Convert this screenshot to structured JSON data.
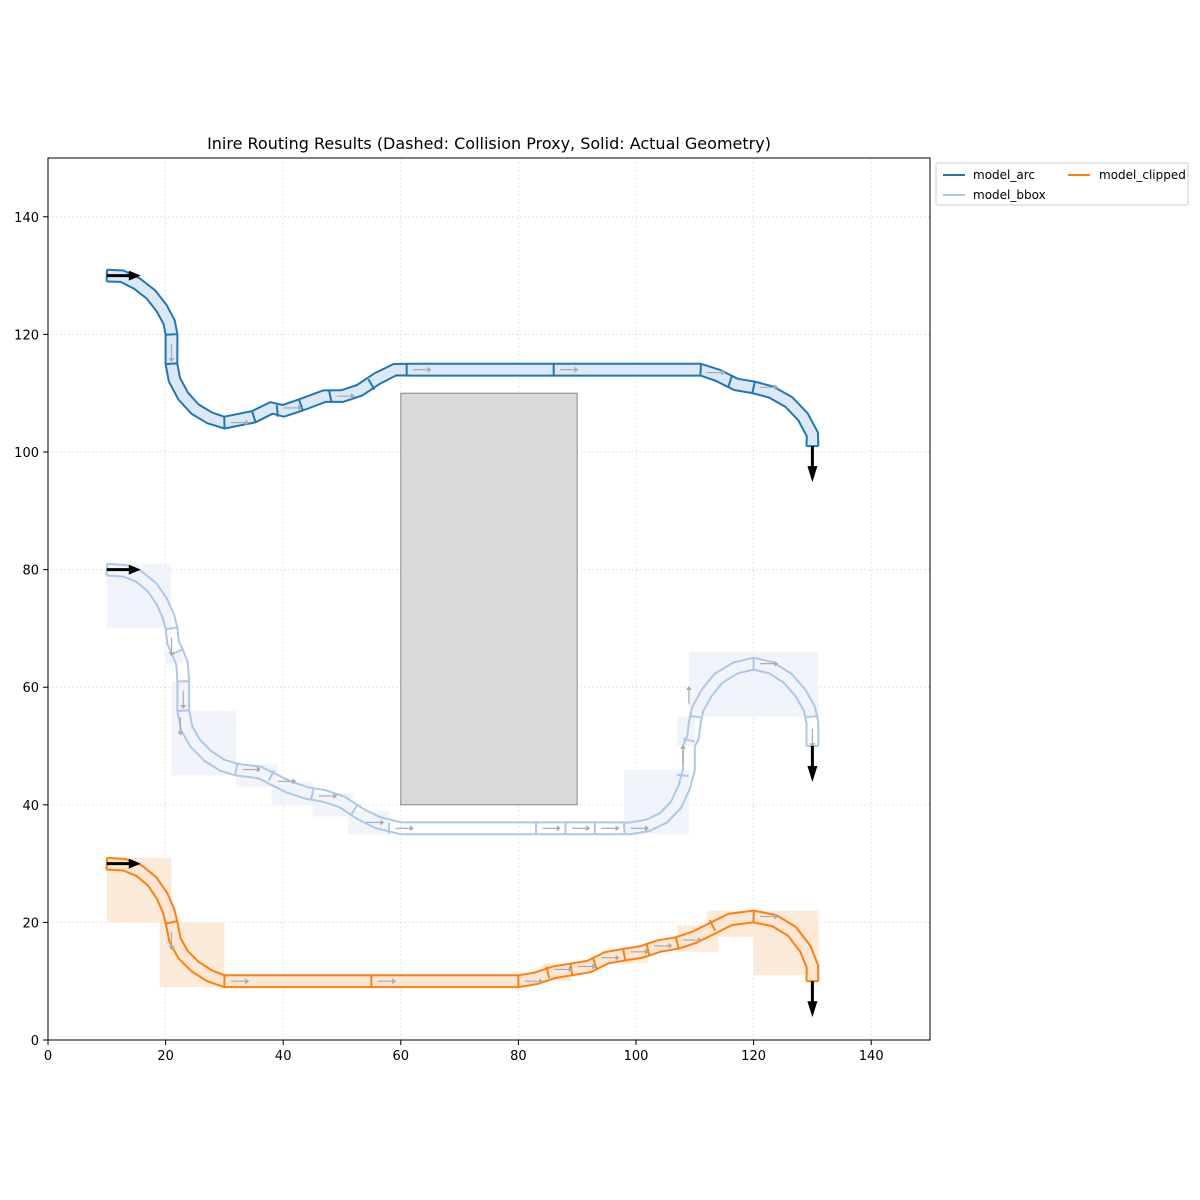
{
  "chart_data": {
    "type": "line",
    "title": "Inire Routing Results (Dashed: Collision Proxy, Solid: Actual Geometry)",
    "xlabel": "",
    "ylabel": "",
    "xlim": [
      0,
      150
    ],
    "ylim": [
      0,
      150
    ],
    "xticks": [
      0,
      20,
      40,
      60,
      80,
      100,
      120,
      140
    ],
    "yticks": [
      0,
      20,
      40,
      60,
      80,
      100,
      120,
      140
    ],
    "grid": true,
    "legend_placement": "outside top-right",
    "obstacle": {
      "x0": 60,
      "y0": 40,
      "x1": 90,
      "y1": 110,
      "color": "#d9d9d9"
    },
    "series": [
      {
        "name": "model_arc",
        "color": "#1f77b4",
        "fill": "#dce9f5",
        "proxy_fill": "",
        "start": {
          "x": 10,
          "y": 130,
          "dir": "east"
        },
        "end": {
          "x": 130,
          "y": 101,
          "dir": "south"
        },
        "path": [
          [
            10,
            130
          ],
          [
            12.6,
            129.9
          ],
          [
            15.2,
            128.6
          ],
          [
            17.5,
            126.8
          ],
          [
            19.3,
            124.5
          ],
          [
            20.6,
            122.1
          ],
          [
            21,
            120
          ],
          [
            21,
            115
          ],
          [
            21.5,
            112.3
          ],
          [
            23,
            109.5
          ],
          [
            25,
            107.3
          ],
          [
            27.5,
            105.8
          ],
          [
            30,
            105
          ],
          [
            35,
            106
          ],
          [
            38,
            107.5
          ],
          [
            40,
            107
          ],
          [
            43,
            108
          ],
          [
            47,
            109.5
          ],
          [
            50,
            109.5
          ],
          [
            53,
            110.5
          ],
          [
            56,
            112.5
          ],
          [
            59,
            114
          ],
          [
            62,
            114
          ],
          [
            86,
            114
          ],
          [
            111,
            114
          ],
          [
            114,
            113
          ],
          [
            117,
            111.5
          ],
          [
            120,
            111
          ],
          [
            123,
            110.2
          ],
          [
            126,
            108.5
          ],
          [
            128.4,
            106
          ],
          [
            130,
            103
          ],
          [
            130,
            101
          ]
        ],
        "ticks": [
          [
            10,
            130
          ],
          [
            21,
            120
          ],
          [
            21,
            115
          ],
          [
            30,
            105
          ],
          [
            35,
            106
          ],
          [
            39,
            107
          ],
          [
            43,
            108
          ],
          [
            48,
            109.5
          ],
          [
            55,
            111.5
          ],
          [
            61,
            114
          ],
          [
            86,
            114
          ],
          [
            111,
            114
          ],
          [
            116,
            112
          ],
          [
            120,
            111
          ],
          [
            130,
            101
          ]
        ],
        "arrows": [
          [
            21,
            117.5,
            "s"
          ],
          [
            32,
            105,
            "e"
          ],
          [
            41,
            107.5,
            "e"
          ],
          [
            50,
            109.5,
            "e"
          ],
          [
            63,
            114,
            "e"
          ],
          [
            88,
            114,
            "e"
          ],
          [
            113,
            113.5,
            "e"
          ],
          [
            122,
            111,
            "e"
          ]
        ]
      },
      {
        "name": "model_bbox",
        "color": "#aec7e8",
        "fill": "none",
        "proxy_fill": "#eef3fa",
        "start": {
          "x": 10,
          "y": 80,
          "dir": "east"
        },
        "end": {
          "x": 130,
          "y": 50,
          "dir": "south"
        },
        "path": [
          [
            10,
            80
          ],
          [
            13,
            79.8
          ],
          [
            15.5,
            78.8
          ],
          [
            17.7,
            77
          ],
          [
            19.4,
            74.5
          ],
          [
            20.5,
            72
          ],
          [
            21,
            70
          ],
          [
            21.3,
            67.5
          ],
          [
            22,
            66
          ],
          [
            22.8,
            64
          ],
          [
            23,
            61
          ],
          [
            23,
            56
          ],
          [
            23.6,
            53
          ],
          [
            25,
            50.5
          ],
          [
            27.2,
            48.3
          ],
          [
            29.7,
            46.7
          ],
          [
            32,
            46
          ],
          [
            36,
            45.5
          ],
          [
            38,
            44.5
          ],
          [
            41,
            43
          ],
          [
            44,
            42
          ],
          [
            47,
            41.5
          ],
          [
            50,
            40.5
          ],
          [
            53,
            38.5
          ],
          [
            56,
            37
          ],
          [
            60,
            36
          ],
          [
            85,
            36
          ],
          [
            90,
            36
          ],
          [
            95,
            36
          ],
          [
            99,
            36
          ],
          [
            102,
            36.5
          ],
          [
            104.7,
            37.8
          ],
          [
            106.8,
            40
          ],
          [
            108.2,
            43
          ],
          [
            109,
            46
          ],
          [
            109,
            50
          ],
          [
            109.7,
            51.5
          ],
          [
            110,
            54
          ],
          [
            110.5,
            56.3
          ],
          [
            112,
            59
          ],
          [
            114,
            61.5
          ],
          [
            117,
            63.3
          ],
          [
            120,
            64
          ],
          [
            123,
            63.3
          ],
          [
            125.8,
            61.5
          ],
          [
            128,
            59
          ],
          [
            129.5,
            56.3
          ],
          [
            130,
            54
          ],
          [
            130,
            50
          ]
        ],
        "ticks": [
          [
            10,
            80
          ],
          [
            21,
            70
          ],
          [
            22,
            66
          ],
          [
            23,
            61
          ],
          [
            23,
            56
          ],
          [
            32,
            46
          ],
          [
            38,
            45
          ],
          [
            45,
            42
          ],
          [
            52,
            39
          ],
          [
            58,
            36
          ],
          [
            83,
            36
          ],
          [
            88,
            36
          ],
          [
            93,
            36
          ],
          [
            98,
            36
          ],
          [
            108,
            45
          ],
          [
            109,
            51
          ],
          [
            110,
            55
          ],
          [
            120,
            64
          ],
          [
            130,
            55
          ],
          [
            130,
            50
          ]
        ],
        "arrows": [
          [
            21,
            67.5,
            "s"
          ],
          [
            23,
            58.5,
            "s"
          ],
          [
            22.5,
            54,
            "s"
          ],
          [
            34,
            46,
            "e"
          ],
          [
            40,
            44,
            "e"
          ],
          [
            47,
            41.5,
            "e"
          ],
          [
            55,
            37,
            "e"
          ],
          [
            60,
            36,
            "e"
          ],
          [
            85,
            36,
            "e"
          ],
          [
            90,
            36,
            "e"
          ],
          [
            95,
            36,
            "e"
          ],
          [
            100,
            36,
            "e"
          ],
          [
            108,
            48,
            "n"
          ],
          [
            109,
            58,
            "n"
          ],
          [
            122,
            64,
            "e"
          ],
          [
            130,
            52,
            "s"
          ]
        ],
        "proxies": [
          [
            10,
            70,
            21,
            81
          ],
          [
            20,
            64,
            23,
            66
          ],
          [
            21,
            56,
            24,
            61
          ],
          [
            21,
            45,
            32,
            56
          ],
          [
            32,
            43,
            39,
            47
          ],
          [
            38,
            40,
            45,
            44
          ],
          [
            45,
            38,
            52,
            42
          ],
          [
            51,
            35,
            58,
            39
          ],
          [
            98,
            35,
            109,
            46
          ],
          [
            107,
            50,
            110,
            55
          ],
          [
            109,
            55,
            131,
            66
          ]
        ]
      },
      {
        "name": "model_clipped",
        "color": "#ff7f0e",
        "fill": "#fde7d4",
        "proxy_fill": "#fde7d4",
        "start": {
          "x": 10,
          "y": 30,
          "dir": "east"
        },
        "end": {
          "x": 130,
          "y": 10,
          "dir": "south"
        },
        "path": [
          [
            10,
            30
          ],
          [
            13,
            29.8
          ],
          [
            15.5,
            28.8
          ],
          [
            17.7,
            27
          ],
          [
            19.4,
            24.5
          ],
          [
            20.5,
            22
          ],
          [
            21,
            20
          ],
          [
            21.6,
            17
          ],
          [
            23,
            14.5
          ],
          [
            25,
            12.5
          ],
          [
            27.5,
            10.9
          ],
          [
            30,
            10
          ],
          [
            55,
            10
          ],
          [
            80,
            10
          ],
          [
            83,
            10.5
          ],
          [
            86,
            11.5
          ],
          [
            89,
            12
          ],
          [
            92,
            12.5
          ],
          [
            95,
            14
          ],
          [
            98,
            14.5
          ],
          [
            101,
            15
          ],
          [
            104,
            16
          ],
          [
            107,
            16.5
          ],
          [
            110,
            17.5
          ],
          [
            113,
            19
          ],
          [
            116,
            20.5
          ],
          [
            120,
            21
          ],
          [
            123.5,
            20.3
          ],
          [
            126.5,
            18.5
          ],
          [
            128.8,
            15.5
          ],
          [
            130,
            12.5
          ],
          [
            130,
            10
          ]
        ],
        "ticks": [
          [
            10,
            30
          ],
          [
            21,
            20
          ],
          [
            30,
            10
          ],
          [
            55,
            10
          ],
          [
            80,
            10
          ],
          [
            85,
            11.5
          ],
          [
            89,
            12
          ],
          [
            93,
            13
          ],
          [
            98,
            14.5
          ],
          [
            102,
            15.5
          ],
          [
            107,
            16.5
          ],
          [
            113,
            19.5
          ],
          [
            120,
            21
          ],
          [
            130,
            10
          ]
        ],
        "arrows": [
          [
            21,
            17.5,
            "s"
          ],
          [
            32,
            10,
            "e"
          ],
          [
            57,
            10,
            "e"
          ],
          [
            82,
            10,
            "e"
          ],
          [
            87,
            12,
            "e"
          ],
          [
            91,
            12.5,
            "e"
          ],
          [
            95,
            14,
            "e"
          ],
          [
            100,
            15,
            "e"
          ],
          [
            104,
            16,
            "e"
          ],
          [
            109,
            17,
            "e"
          ],
          [
            122,
            21,
            "e"
          ]
        ],
        "proxies": [
          [
            10,
            20,
            21,
            31
          ],
          [
            19,
            9,
            30,
            20
          ],
          [
            84,
            10,
            89,
            13
          ],
          [
            98,
            13,
            102,
            15
          ],
          [
            107,
            15,
            114,
            19.5
          ],
          [
            112,
            17.5,
            131,
            22
          ],
          [
            120,
            11,
            131,
            20
          ]
        ]
      }
    ]
  }
}
